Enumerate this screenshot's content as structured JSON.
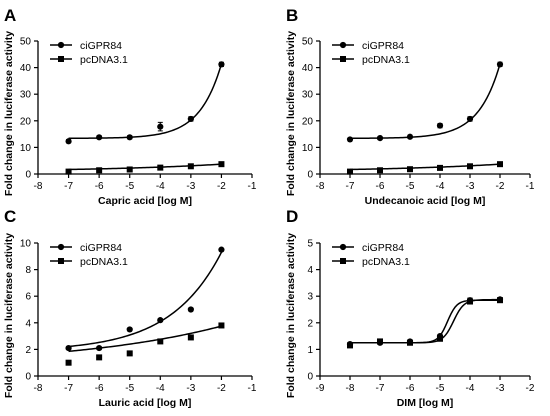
{
  "chart_data": [
    {
      "panel": "A",
      "type": "scatter",
      "xlabel": "Capric acid [log M]",
      "ylabel": "Fold change in luciferase activity",
      "xlim": [
        -8,
        -1
      ],
      "ylim": [
        0,
        50
      ],
      "xticks": [
        -8,
        -7,
        -6,
        -5,
        -4,
        -3,
        -2,
        -1
      ],
      "yticks": [
        0,
        10,
        20,
        30,
        40,
        50
      ],
      "legend": "top-left",
      "series": [
        {
          "name": "ciGPR84",
          "marker": "circle",
          "x": [
            -7,
            -6,
            -5,
            -4,
            -3,
            -2
          ],
          "y": [
            12.3,
            13.8,
            13.8,
            17.8,
            20.7,
            41.2
          ],
          "err": [
            0.6,
            0.5,
            0.6,
            1.6,
            0.8,
            0.8
          ],
          "curve": {
            "kind": "exp",
            "bottom": 13.4,
            "span": 28,
            "k": 1.4
          }
        },
        {
          "name": "pcDNA3.1",
          "marker": "square",
          "x": [
            -7,
            -6,
            -5,
            -4,
            -3,
            -2
          ],
          "y": [
            0.9,
            1.4,
            1.7,
            2.4,
            2.9,
            3.7
          ],
          "err": [
            0.2,
            0.2,
            0.2,
            0.3,
            0.3,
            0.3
          ],
          "curve": {
            "kind": "exp",
            "bottom": 0.9,
            "span": 2.8,
            "k": 0.25
          }
        }
      ]
    },
    {
      "panel": "B",
      "type": "scatter",
      "xlabel": "Undecanoic acid [log M]",
      "ylabel": "Fold change in luciferase activity",
      "xlim": [
        -8,
        -1
      ],
      "ylim": [
        0,
        50
      ],
      "xticks": [
        -8,
        -7,
        -6,
        -5,
        -4,
        -3,
        -2,
        -1
      ],
      "yticks": [
        0,
        10,
        20,
        30,
        40,
        50
      ],
      "legend": "top-left",
      "series": [
        {
          "name": "ciGPR84",
          "marker": "circle",
          "x": [
            -7,
            -6,
            -5,
            -4,
            -3,
            -2
          ],
          "y": [
            13.0,
            13.5,
            14.0,
            18.2,
            20.7,
            41.2
          ],
          "err": [
            0.5,
            0.5,
            0.5,
            0.8,
            0.8,
            0.8
          ],
          "curve": {
            "kind": "exp",
            "bottom": 13.4,
            "span": 28,
            "k": 1.4
          }
        },
        {
          "name": "pcDNA3.1",
          "marker": "square",
          "x": [
            -7,
            -6,
            -5,
            -4,
            -3,
            -2
          ],
          "y": [
            0.9,
            1.4,
            1.8,
            2.3,
            2.9,
            3.7
          ],
          "err": [
            0.2,
            0.2,
            0.2,
            0.3,
            0.3,
            0.3
          ],
          "curve": {
            "kind": "exp",
            "bottom": 0.9,
            "span": 2.8,
            "k": 0.25
          }
        }
      ]
    },
    {
      "panel": "C",
      "type": "scatter",
      "xlabel": "Lauric acid [log M]",
      "ylabel": "Fold change in luciferase activity",
      "xlim": [
        -8,
        -1
      ],
      "ylim": [
        0,
        10
      ],
      "xticks": [
        -8,
        -7,
        -6,
        -5,
        -4,
        -3,
        -2,
        -1
      ],
      "yticks": [
        0,
        2,
        4,
        6,
        8,
        10
      ],
      "legend": "top-left",
      "series": [
        {
          "name": "ciGPR84",
          "marker": "circle",
          "x": [
            -7,
            -6,
            -5,
            -4,
            -3,
            -2
          ],
          "y": [
            2.1,
            2.1,
            3.5,
            4.2,
            5.0,
            9.5
          ],
          "err": [
            0.1,
            0.1,
            0.1,
            0.1,
            0.1,
            0.1
          ],
          "curve": {
            "kind": "exp",
            "bottom": 1.85,
            "span": 7.45,
            "k": 0.6
          }
        },
        {
          "name": "pcDNA3.1",
          "marker": "square",
          "x": [
            -7,
            -6,
            -5,
            -4,
            -3,
            -2
          ],
          "y": [
            1.0,
            1.4,
            1.7,
            2.6,
            2.9,
            3.8
          ],
          "err": [
            0.1,
            0.1,
            0.1,
            0.1,
            0.1,
            0.1
          ],
          "curve": {
            "kind": "exp",
            "bottom": 0.75,
            "span": 3.0,
            "k": 0.2
          }
        }
      ]
    },
    {
      "panel": "D",
      "type": "scatter",
      "xlabel": "DIM [log M]",
      "ylabel": "Fold change in luciferase activity",
      "xlim": [
        -9,
        -2
      ],
      "ylim": [
        0,
        5
      ],
      "xticks": [
        -9,
        -8,
        -7,
        -6,
        -5,
        -4,
        -3,
        -2
      ],
      "yticks": [
        0,
        1,
        2,
        3,
        4,
        5
      ],
      "legend": "top-left",
      "series": [
        {
          "name": "ciGPR84",
          "marker": "circle",
          "x": [
            -8,
            -7,
            -6,
            -5,
            -4,
            -3
          ],
          "y": [
            1.2,
            1.25,
            1.3,
            1.5,
            2.85,
            2.88
          ],
          "err": [
            0.06,
            0.05,
            0.05,
            0.06,
            0.08,
            0.06
          ],
          "curve": {
            "kind": "sigmoid",
            "bottom": 1.25,
            "top": 2.87,
            "ec50": -4.55,
            "slope": 2.5
          }
        },
        {
          "name": "pcDNA3.1",
          "marker": "square",
          "x": [
            -8,
            -7,
            -6,
            -5,
            -4,
            -3
          ],
          "y": [
            1.15,
            1.3,
            1.25,
            1.4,
            2.8,
            2.85
          ],
          "err": [
            0.06,
            0.07,
            0.06,
            0.06,
            0.07,
            0.06
          ],
          "curve": {
            "kind": "sigmoid",
            "bottom": 1.25,
            "top": 2.85,
            "ec50": -4.75,
            "slope": 2.8
          }
        }
      ]
    }
  ]
}
